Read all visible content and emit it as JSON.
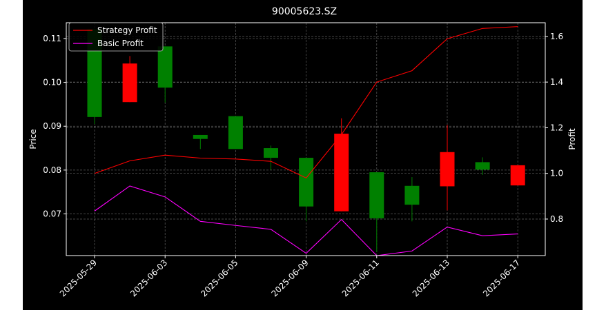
{
  "chart_data": {
    "type": "candlestick",
    "title": "90005623.SZ",
    "ylabel": "Price",
    "ylabel_right": "Profit",
    "x_tick_labels": [
      "2025-05-29",
      "2025-06-03",
      "2025-06-05",
      "2025-06-09",
      "2025-06-11",
      "2025-06-13",
      "2025-06-17"
    ],
    "ylim": [
      0.0605,
      0.1136
    ],
    "y_ticks": [
      "0.07",
      "0.08",
      "0.09",
      "0.10",
      "0.11"
    ],
    "ylim_right": [
      0.64,
      1.66
    ],
    "y_ticks_right": [
      "0.8",
      "1.0",
      "1.2",
      "1.4",
      "1.6"
    ],
    "grid": true,
    "legend_position": "top-left",
    "colors": {
      "up": "#008000",
      "down": "#ff0000",
      "strategy": "#ff0000",
      "basic": "#ff00ff"
    },
    "candles": [
      {
        "open": 0.0921,
        "close": 0.1121,
        "high": 0.1121,
        "low": 0.0905
      },
      {
        "open": 0.1043,
        "close": 0.0955,
        "high": 0.106,
        "low": 0.0955
      },
      {
        "open": 0.0988,
        "close": 0.1082,
        "high": 0.1082,
        "low": 0.0954
      },
      {
        "open": 0.0871,
        "close": 0.088,
        "high": 0.088,
        "low": 0.0848
      },
      {
        "open": 0.0848,
        "close": 0.0923,
        "high": 0.0923,
        "low": 0.0848
      },
      {
        "open": 0.0828,
        "close": 0.085,
        "high": 0.0856,
        "low": 0.08
      },
      {
        "open": 0.0717,
        "close": 0.0828,
        "high": 0.0828,
        "low": 0.0683
      },
      {
        "open": 0.0883,
        "close": 0.0706,
        "high": 0.0918,
        "low": 0.0706
      },
      {
        "open": 0.069,
        "close": 0.0795,
        "high": 0.0795,
        "low": 0.0613
      },
      {
        "open": 0.0721,
        "close": 0.0764,
        "high": 0.0784,
        "low": 0.0683
      },
      {
        "open": 0.0841,
        "close": 0.0763,
        "high": 0.0903,
        "low": 0.0708
      },
      {
        "open": 0.0801,
        "close": 0.0818,
        "high": 0.0829,
        "low": 0.0789
      },
      {
        "open": 0.0811,
        "close": 0.0765,
        "high": 0.0811,
        "low": 0.0765
      }
    ],
    "series": [
      {
        "name": "Strategy Profit",
        "values": [
          1.0,
          1.055,
          1.08,
          1.067,
          1.063,
          1.053,
          0.98,
          1.17,
          1.4,
          1.45,
          1.59,
          1.635,
          1.643
        ]
      },
      {
        "name": "Basic Profit",
        "values": [
          0.835,
          0.945,
          0.897,
          0.79,
          0.772,
          0.755,
          0.65,
          0.798,
          0.64,
          0.66,
          0.765,
          0.727,
          0.735
        ]
      }
    ]
  }
}
